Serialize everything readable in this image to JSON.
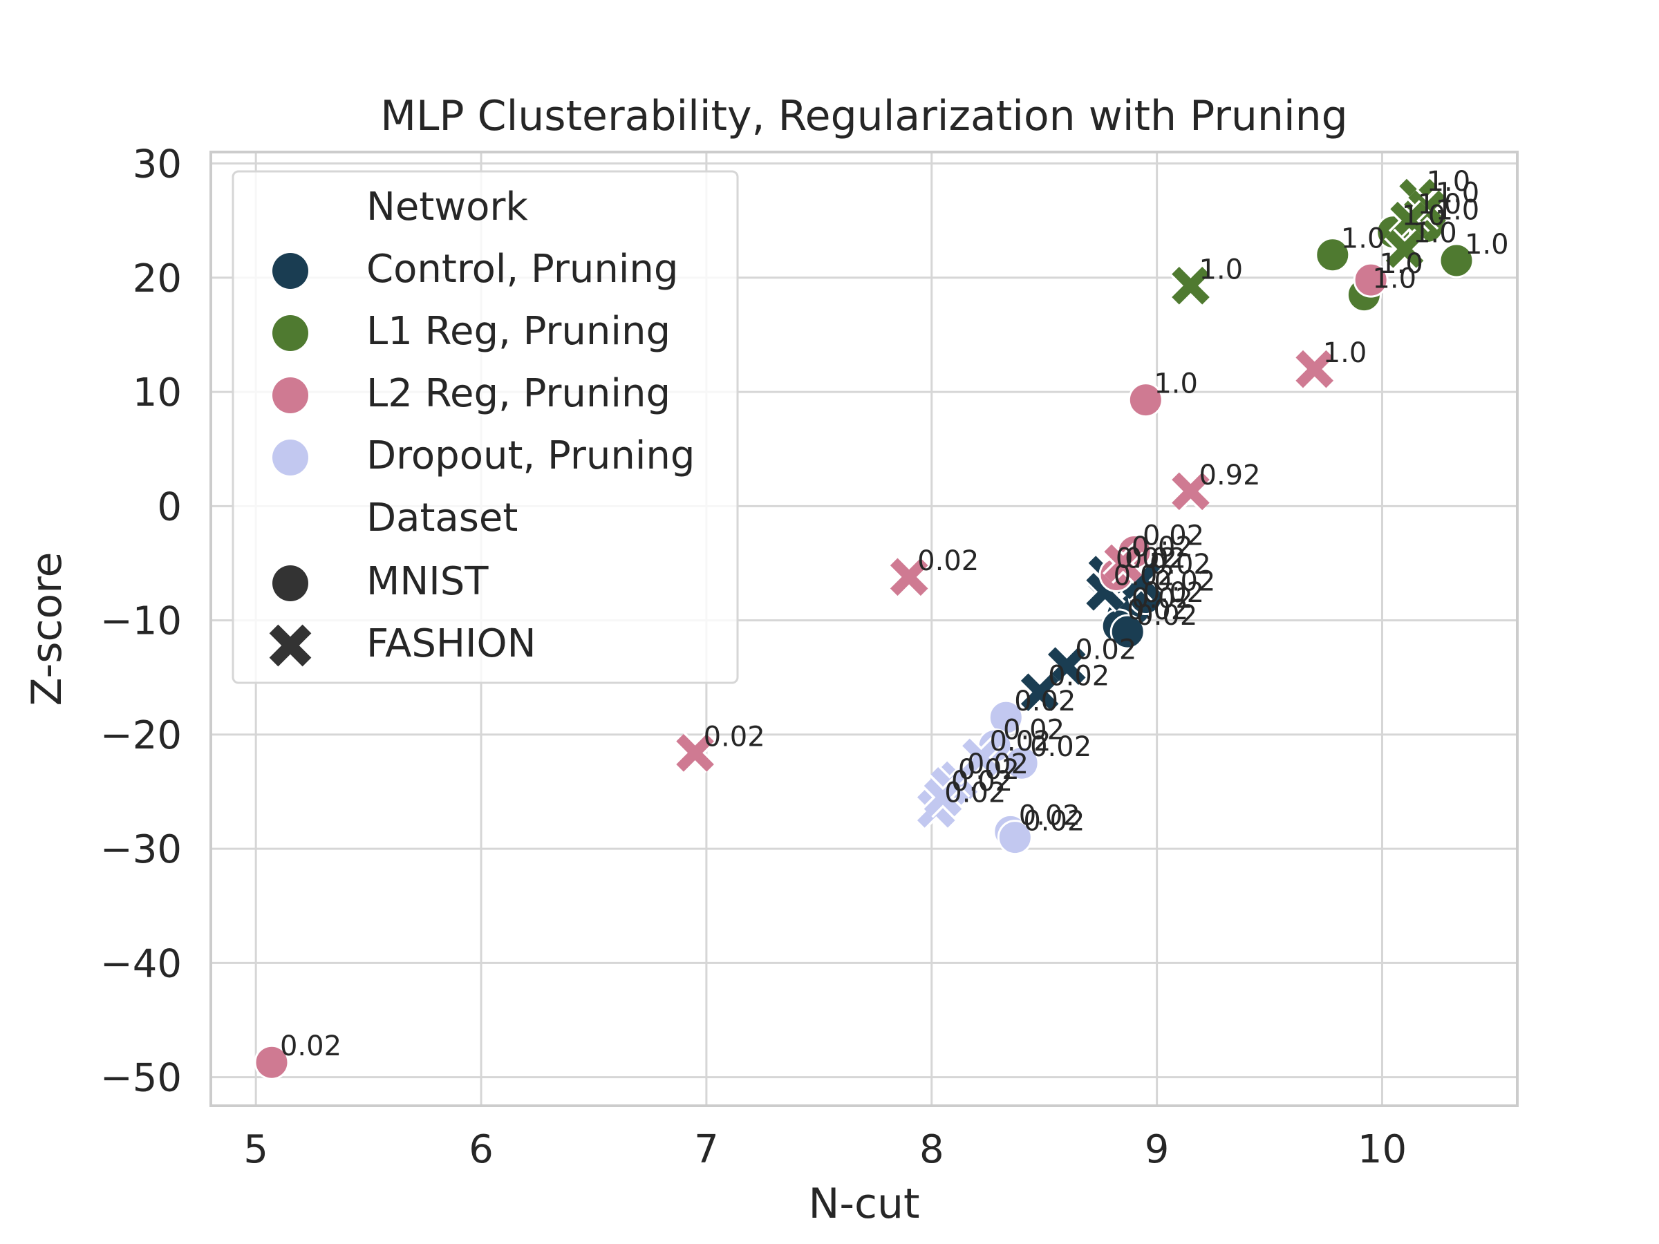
{
  "chart_data": {
    "type": "scatter",
    "title": "MLP Clusterability, Regularization with Pruning",
    "xlabel": "N-cut",
    "ylabel": "Z-score",
    "xlim": [
      4.8,
      10.6
    ],
    "ylim": [
      -52.5,
      31
    ],
    "xticks": [
      5,
      6,
      7,
      8,
      9,
      10
    ],
    "yticks": [
      30,
      20,
      10,
      0,
      -10,
      -20,
      -30,
      -40,
      -50
    ],
    "xtick_labels": [
      "5",
      "6",
      "7",
      "8",
      "9",
      "10"
    ],
    "ytick_labels": [
      "30",
      "20",
      "10",
      "0",
      "−10",
      "−20",
      "−30",
      "−40",
      "−50"
    ],
    "grid": true,
    "legend": {
      "position": "top-left",
      "hue_title": "Network",
      "style_title": "Dataset",
      "hue_entries": [
        {
          "name": "Control, Pruning",
          "color": "#1a3d52"
        },
        {
          "name": "L1 Reg, Pruning",
          "color": "#4f7a30"
        },
        {
          "name": "L2 Reg, Pruning",
          "color": "#cf7a92"
        },
        {
          "name": "Dropout, Pruning",
          "color": "#c2c8f0"
        }
      ],
      "style_entries": [
        {
          "name": "MNIST",
          "marker": "circle"
        },
        {
          "name": "FASHION",
          "marker": "x"
        }
      ]
    },
    "series": [
      {
        "name": "Control, Pruning",
        "color": "#1a3d52",
        "points": [
          {
            "x": 8.85,
            "y": -9.5,
            "marker": "circle",
            "label": "0.02"
          },
          {
            "x": 8.9,
            "y": -9.0,
            "marker": "circle",
            "label": "0.02"
          },
          {
            "x": 8.95,
            "y": -8.0,
            "marker": "circle",
            "label": "0.02"
          },
          {
            "x": 8.83,
            "y": -10.5,
            "marker": "circle",
            "label": "0.02"
          },
          {
            "x": 8.87,
            "y": -11.0,
            "marker": "circle",
            "label": "0.02"
          },
          {
            "x": 8.78,
            "y": -6.0,
            "marker": "x",
            "label": "0.02"
          },
          {
            "x": 8.77,
            "y": -7.5,
            "marker": "x",
            "label": "0.02"
          },
          {
            "x": 8.6,
            "y": -14.0,
            "marker": "x",
            "label": "0.02"
          },
          {
            "x": 8.48,
            "y": -16.3,
            "marker": "x",
            "label": "0.02"
          },
          {
            "x": 8.93,
            "y": -6.5,
            "marker": "x",
            "label": "0.02"
          }
        ]
      },
      {
        "name": "L1 Reg, Pruning",
        "color": "#4f7a30",
        "points": [
          {
            "x": 10.05,
            "y": 24.0,
            "marker": "circle",
            "label": "1.0"
          },
          {
            "x": 10.2,
            "y": 24.5,
            "marker": "circle",
            "label": "1.0"
          },
          {
            "x": 9.78,
            "y": 22.0,
            "marker": "circle",
            "label": "1.0"
          },
          {
            "x": 10.33,
            "y": 21.5,
            "marker": "circle",
            "label": "1.0"
          },
          {
            "x": 9.92,
            "y": 18.5,
            "marker": "circle",
            "label": "1.0"
          },
          {
            "x": 10.16,
            "y": 27.0,
            "marker": "x",
            "label": "1.0"
          },
          {
            "x": 10.2,
            "y": 26.0,
            "marker": "x",
            "label": "1.0"
          },
          {
            "x": 10.12,
            "y": 25.0,
            "marker": "x",
            "label": "1.0"
          },
          {
            "x": 10.1,
            "y": 22.5,
            "marker": "x",
            "label": "1.0"
          },
          {
            "x": 9.15,
            "y": 19.3,
            "marker": "x",
            "label": "1.0"
          }
        ]
      },
      {
        "name": "L2 Reg, Pruning",
        "color": "#cf7a92",
        "points": [
          {
            "x": 9.95,
            "y": 19.8,
            "marker": "circle",
            "label": "1.0"
          },
          {
            "x": 8.95,
            "y": 9.3,
            "marker": "circle",
            "label": "1.0"
          },
          {
            "x": 8.9,
            "y": -4.0,
            "marker": "circle",
            "label": "0.02"
          },
          {
            "x": 8.82,
            "y": -6.0,
            "marker": "circle",
            "label": "0.02"
          },
          {
            "x": 5.07,
            "y": -48.7,
            "marker": "circle",
            "label": "0.02"
          },
          {
            "x": 9.7,
            "y": 12.0,
            "marker": "x",
            "label": "1.0"
          },
          {
            "x": 9.15,
            "y": 1.3,
            "marker": "x",
            "label": "0.92"
          },
          {
            "x": 7.9,
            "y": -6.2,
            "marker": "x",
            "label": "0.02"
          },
          {
            "x": 6.95,
            "y": -21.6,
            "marker": "x",
            "label": "0.02"
          },
          {
            "x": 8.85,
            "y": -5.0,
            "marker": "x",
            "label": "0.02"
          }
        ]
      },
      {
        "name": "Dropout, Pruning",
        "color": "#c2c8f0",
        "points": [
          {
            "x": 8.33,
            "y": -18.5,
            "marker": "circle",
            "label": "0.02"
          },
          {
            "x": 8.28,
            "y": -21.0,
            "marker": "circle",
            "label": "0.02"
          },
          {
            "x": 8.4,
            "y": -22.5,
            "marker": "circle",
            "label": "0.02"
          },
          {
            "x": 8.35,
            "y": -28.5,
            "marker": "circle",
            "label": "0.02"
          },
          {
            "x": 8.37,
            "y": -29.0,
            "marker": "circle",
            "label": "0.02"
          },
          {
            "x": 8.22,
            "y": -22.0,
            "marker": "x",
            "label": "0.02"
          },
          {
            "x": 8.12,
            "y": -24.0,
            "marker": "x",
            "label": "0.02"
          },
          {
            "x": 8.08,
            "y": -24.5,
            "marker": "x",
            "label": "0.02"
          },
          {
            "x": 8.02,
            "y": -26.5,
            "marker": "x",
            "label": "0.02"
          },
          {
            "x": 8.05,
            "y": -25.5,
            "marker": "x",
            "label": "0.02"
          }
        ]
      }
    ]
  }
}
